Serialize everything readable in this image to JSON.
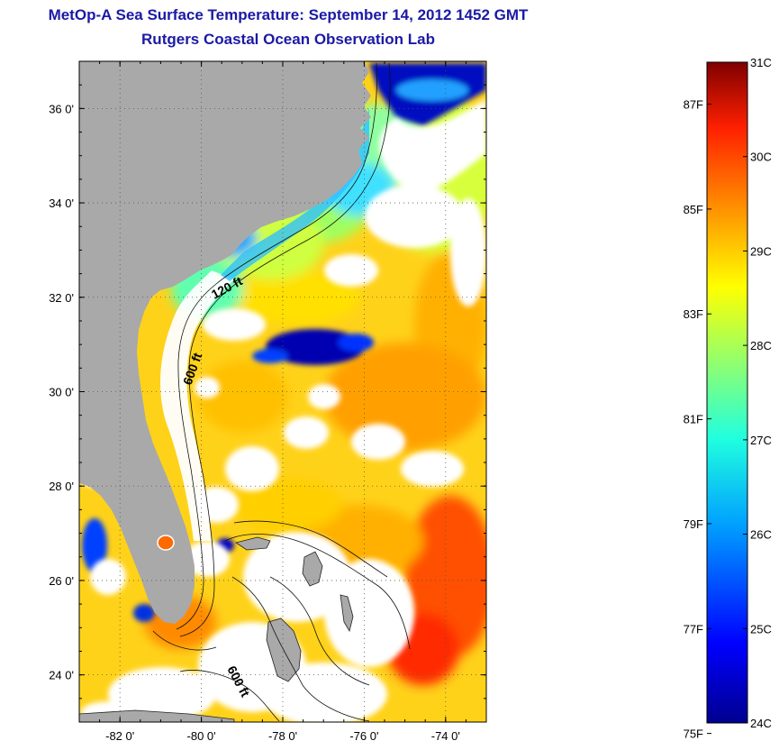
{
  "title_line1": "MetOp-A Sea Surface Temperature:  September 14, 2012 1452 GMT",
  "title_line2": "Rutgers Coastal Ocean Observation Lab",
  "map": {
    "lon_range": [
      -83.0,
      -73.0
    ],
    "lat_range": [
      23.0,
      37.0
    ],
    "lon_ticks": [
      {
        "value": -82,
        "label": "-82 0'"
      },
      {
        "value": -80,
        "label": "-80 0'"
      },
      {
        "value": -78,
        "label": "-78 0'"
      },
      {
        "value": -76,
        "label": "-76 0'"
      },
      {
        "value": -74,
        "label": "-74 0'"
      }
    ],
    "lat_ticks": [
      {
        "value": 36,
        "label": "36 0'"
      },
      {
        "value": 34,
        "label": "34 0'"
      },
      {
        "value": 32,
        "label": "32 0'"
      },
      {
        "value": 30,
        "label": "30 0'"
      },
      {
        "value": 28,
        "label": "28 0'"
      },
      {
        "value": 26,
        "label": "26 0'"
      },
      {
        "value": 24,
        "label": "24 0'"
      }
    ],
    "grid": "dotted",
    "land_color": "#a9a9a9",
    "cloud_color": "#ffffff",
    "contour_labels": [
      {
        "label": "120 ft"
      },
      {
        "label": "600 ft"
      },
      {
        "label": "600 ft"
      }
    ]
  },
  "colorbar": {
    "celsius_range": [
      24,
      31
    ],
    "celsius_labels": [
      "31C",
      "30C",
      "29C",
      "28C",
      "27C",
      "26C",
      "25C",
      "24C"
    ],
    "fahrenheit_labels": [
      {
        "value": 87,
        "label": "87F"
      },
      {
        "value": 85,
        "label": "85F"
      },
      {
        "value": 83,
        "label": "83F"
      },
      {
        "value": 81,
        "label": "81F"
      },
      {
        "value": 79,
        "label": "79F"
      },
      {
        "value": 77,
        "label": "77F"
      },
      {
        "value": 75,
        "label": "75F"
      }
    ],
    "colormap": [
      "#00008f",
      "#0000ff",
      "#00a0ff",
      "#20ffdf",
      "#9fff60",
      "#ffff00",
      "#ff9000",
      "#ff2000",
      "#800000"
    ]
  }
}
